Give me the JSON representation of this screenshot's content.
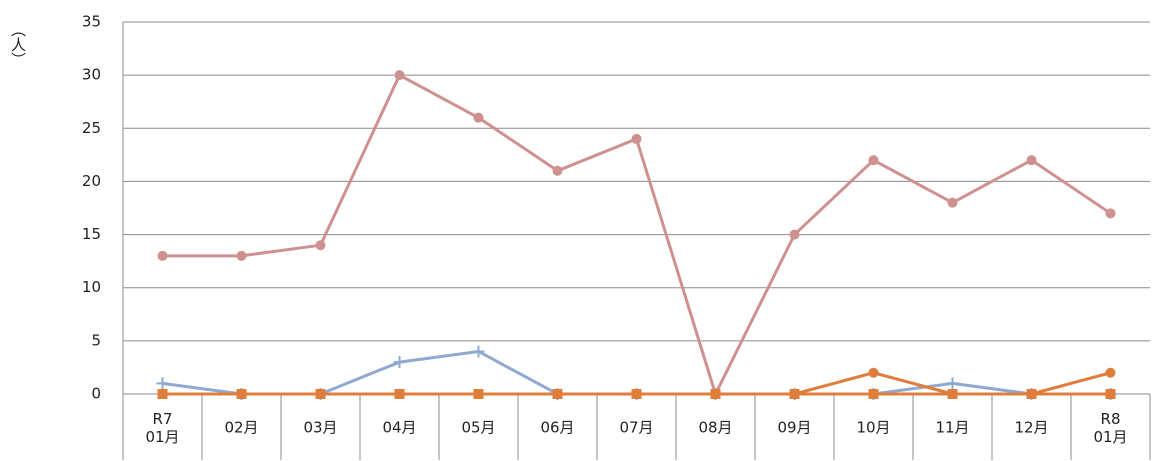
{
  "chart_data": {
    "type": "line",
    "y_label": "（人）",
    "categories": [
      "R7\n01月",
      "02月",
      "03月",
      "04月",
      "05月",
      "06月",
      "07月",
      "08月",
      "09月",
      "10月",
      "11月",
      "12月",
      "R8\n01月"
    ],
    "series": [
      {
        "color": "#cf9090",
        "marker": "circle",
        "values": [
          13,
          13,
          14,
          30,
          26,
          21,
          24,
          0,
          15,
          22,
          18,
          22,
          17
        ]
      },
      {
        "color": "#8fa9d1",
        "marker": "plus",
        "values": [
          1,
          0,
          0,
          3,
          4,
          0,
          0,
          0,
          0,
          0,
          1,
          0,
          0
        ]
      },
      {
        "color": "#2e9494",
        "marker": "square",
        "values": [
          0,
          0,
          0,
          0,
          0,
          0,
          0,
          0,
          0,
          0,
          0,
          0,
          0
        ]
      },
      {
        "color": "#8064a2",
        "marker": "square",
        "values": [
          0,
          0,
          0,
          0,
          0,
          0,
          0,
          0,
          0,
          0,
          0,
          0,
          0
        ]
      },
      {
        "color": "#e07d3a",
        "marker": "square",
        "values": [
          0,
          0,
          0,
          0,
          0,
          0,
          0,
          0,
          0,
          0,
          0,
          0,
          0
        ]
      },
      {
        "color": "#e07d3a",
        "marker": "circle",
        "values": [
          0,
          0,
          0,
          0,
          0,
          0,
          0,
          0,
          0,
          2,
          0,
          0,
          2
        ]
      }
    ],
    "ylim": [
      0,
      35
    ],
    "yticks": [
      0,
      5,
      10,
      15,
      20,
      25,
      30,
      35
    ],
    "grid": true
  }
}
